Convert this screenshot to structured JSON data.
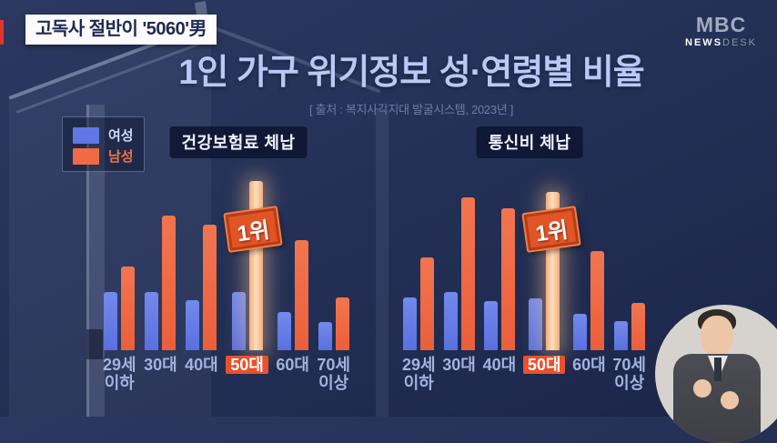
{
  "breaking_badge": {
    "text": "고독사 절반이 '5060'男"
  },
  "logo": {
    "brand": "MBC",
    "news": "NEWS",
    "desk": "DESK"
  },
  "title": "1인 가구 위기정보 성·연령별 비율",
  "source": "[ 출처 : 복지사각지대 발굴시스템, 2023년 ]",
  "legend": {
    "female": "여성",
    "male": "남성"
  },
  "rank_label": "1위",
  "colors": {
    "background": "#233056",
    "female_bar": "#6077e4",
    "male_bar": "#ef6a45",
    "highlight_bar": "#f8c9a0",
    "rank_badge": "#e05426",
    "category_highlight": "#e8512a",
    "title_text": "#b9c8f5"
  },
  "chart_data": [
    {
      "type": "bar",
      "title": "건강보험료 체납",
      "categories": [
        [
          "29세",
          "이하"
        ],
        [
          "30대"
        ],
        [
          "40대"
        ],
        [
          "50대"
        ],
        [
          "60대"
        ],
        [
          "70세",
          "이상"
        ]
      ],
      "series": [
        {
          "name": "여성",
          "values": [
            64,
            64,
            55,
            64,
            42,
            31
          ]
        },
        {
          "name": "남성",
          "values": [
            92,
            148,
            138,
            186,
            121,
            58
          ]
        }
      ],
      "highlighted_category": "50대",
      "annotation": {
        "text": "1위",
        "category": "50대",
        "series": "남성"
      },
      "value_axis": "none shown (bar heights are relative, estimated in px)",
      "legend_position": "shared top-left",
      "grid": false
    },
    {
      "type": "bar",
      "title": "통신비 체납",
      "categories": [
        [
          "29세",
          "이하"
        ],
        [
          "30대"
        ],
        [
          "40대"
        ],
        [
          "50대"
        ],
        [
          "60대"
        ],
        [
          "70세",
          "이상"
        ]
      ],
      "series": [
        {
          "name": "여성",
          "values": [
            58,
            64,
            54,
            57,
            40,
            32
          ]
        },
        {
          "name": "남성",
          "values": [
            102,
            168,
            156,
            174,
            109,
            52
          ]
        }
      ],
      "highlighted_category": "50대",
      "annotation": {
        "text": "1위",
        "category": "50대",
        "series": "남성"
      },
      "value_axis": "none shown (bar heights are relative, estimated in px)",
      "legend_position": "shared top-left",
      "grid": false
    }
  ]
}
